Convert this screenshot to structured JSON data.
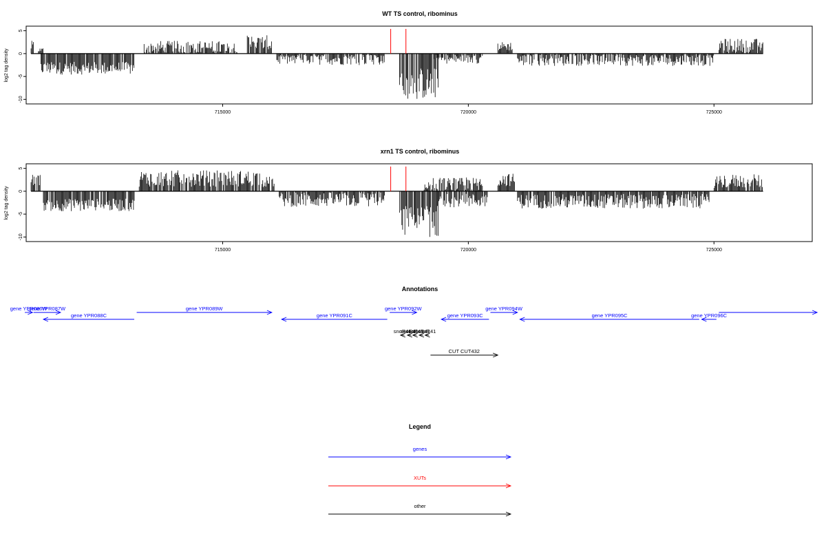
{
  "chart_data": [
    {
      "type": "bar",
      "title": "WT TS control, ribominus",
      "ylabel": "log2 tag density",
      "xlim": [
        711000,
        727000
      ],
      "ylim": [
        -11,
        6
      ],
      "yticks": [
        5,
        0,
        -5,
        -10
      ],
      "xticks": [
        715000,
        720000,
        725000
      ],
      "xtick_labels": [
        "715000",
        "720000",
        "725000"
      ],
      "markers": [
        718420,
        718730
      ],
      "marker_color": "#ff0000",
      "segments": [
        {
          "start": 711100,
          "end": 711150,
          "mean": 1.6,
          "amp": 1.2
        },
        {
          "start": 711300,
          "end": 713200,
          "mean": -3.2,
          "amp": 1.4
        },
        {
          "start": 711250,
          "end": 711350,
          "mean": 0.8,
          "amp": 0.5
        },
        {
          "start": 713400,
          "end": 715300,
          "mean": 1.3,
          "amp": 1.5
        },
        {
          "start": 715500,
          "end": 716000,
          "mean": 2.2,
          "amp": 1.8
        },
        {
          "start": 716100,
          "end": 718300,
          "mean": -1.2,
          "amp": 1.3
        },
        {
          "start": 718600,
          "end": 719400,
          "mean": -6.5,
          "amp": 3.5
        },
        {
          "start": 719300,
          "end": 720300,
          "mean": -1.2,
          "amp": 1.0
        },
        {
          "start": 720600,
          "end": 720900,
          "mean": 1.6,
          "amp": 1.0
        },
        {
          "start": 721000,
          "end": 725000,
          "mean": -1.4,
          "amp": 1.3
        },
        {
          "start": 725100,
          "end": 726000,
          "mean": 1.8,
          "amp": 1.5
        }
      ]
    },
    {
      "type": "bar",
      "title": "xrn1 TS control, ribominus",
      "ylabel": "log2 tag density",
      "xlim": [
        711000,
        727000
      ],
      "ylim": [
        -11,
        6
      ],
      "yticks": [
        5,
        0,
        -5,
        -10
      ],
      "xticks": [
        715000,
        720000,
        725000
      ],
      "xtick_labels": [
        "715000",
        "720000",
        "725000"
      ],
      "markers": [
        718420,
        718730
      ],
      "marker_color": "#ff0000",
      "segments": [
        {
          "start": 711100,
          "end": 711300,
          "mean": 2.5,
          "amp": 1.2
        },
        {
          "start": 711350,
          "end": 713200,
          "mean": -3.0,
          "amp": 1.4
        },
        {
          "start": 713300,
          "end": 715800,
          "mean": 2.8,
          "amp": 1.8
        },
        {
          "start": 715800,
          "end": 716050,
          "mean": 2.0,
          "amp": 1.2
        },
        {
          "start": 716150,
          "end": 718300,
          "mean": -1.8,
          "amp": 1.6
        },
        {
          "start": 718600,
          "end": 719400,
          "mean": -6.5,
          "amp": 3.6
        },
        {
          "start": 719100,
          "end": 720300,
          "mean": 1.2,
          "amp": 1.8
        },
        {
          "start": 719400,
          "end": 720400,
          "mean": -2.0,
          "amp": 1.5
        },
        {
          "start": 720600,
          "end": 720950,
          "mean": 2.5,
          "amp": 1.4
        },
        {
          "start": 721000,
          "end": 724900,
          "mean": -2.2,
          "amp": 1.6
        },
        {
          "start": 725000,
          "end": 726000,
          "mean": 2.2,
          "amp": 1.5
        }
      ]
    }
  ],
  "annotations": {
    "title": "Annotations",
    "xlim": [
      711000,
      727000
    ],
    "features": [
      {
        "label": "gene YPR086W",
        "start": 710700,
        "end": 711130,
        "strand": "+",
        "row": 0,
        "type": "genes"
      },
      {
        "label": "gene YPR087W",
        "start": 711150,
        "end": 711700,
        "strand": "+",
        "row": 0,
        "type": "genes"
      },
      {
        "label": "gene YPR088C",
        "start": 711350,
        "end": 713200,
        "strand": "-",
        "row": 1,
        "type": "genes"
      },
      {
        "label": "gene YPR089W",
        "start": 713250,
        "end": 716000,
        "strand": "+",
        "row": 0,
        "type": "genes"
      },
      {
        "label": "gene YPR091C",
        "start": 716200,
        "end": 718350,
        "strand": "-",
        "row": 1,
        "type": "genes"
      },
      {
        "label": "gene YPR092W",
        "start": 718400,
        "end": 718950,
        "strand": "+",
        "row": 0,
        "type": "genes"
      },
      {
        "label": "gene YPR093C",
        "start": 719450,
        "end": 720420,
        "strand": "-",
        "row": 1,
        "type": "genes"
      },
      {
        "label": "gene YPR094W",
        "start": 720450,
        "end": 721000,
        "strand": "+",
        "row": 0,
        "type": "genes"
      },
      {
        "label": "gene YPR095C",
        "start": 721050,
        "end": 724700,
        "strand": "-",
        "row": 1,
        "type": "genes"
      },
      {
        "label": "gene YPR096C",
        "start": 724750,
        "end": 725050,
        "strand": "-",
        "row": 1,
        "type": "genes"
      },
      {
        "label": "",
        "start": 725100,
        "end": 727100,
        "strand": "+",
        "row": 0,
        "type": "genes"
      },
      {
        "label": "snoR41",
        "start": 718620,
        "end": 718700,
        "strand": "-",
        "row": 2,
        "type": "other"
      },
      {
        "label": "snoR41",
        "start": 718760,
        "end": 718840,
        "strand": "-",
        "row": 2,
        "type": "other"
      },
      {
        "label": "snoR41",
        "start": 718870,
        "end": 718950,
        "strand": "-",
        "row": 2,
        "type": "other"
      },
      {
        "label": "snoR41",
        "start": 719000,
        "end": 719080,
        "strand": "-",
        "row": 2,
        "type": "other"
      },
      {
        "label": "snoR41",
        "start": 719120,
        "end": 719200,
        "strand": "-",
        "row": 2,
        "type": "other"
      },
      {
        "label": "CUT CUT432",
        "start": 719230,
        "end": 720600,
        "strand": "+",
        "row": 3,
        "type": "other"
      }
    ]
  },
  "legend": {
    "title": "Legend",
    "items": [
      {
        "label": "genes",
        "color": "#0000ff"
      },
      {
        "label": "XUTs",
        "color": "#ff0000"
      },
      {
        "label": "other",
        "color": "#000000"
      }
    ]
  }
}
